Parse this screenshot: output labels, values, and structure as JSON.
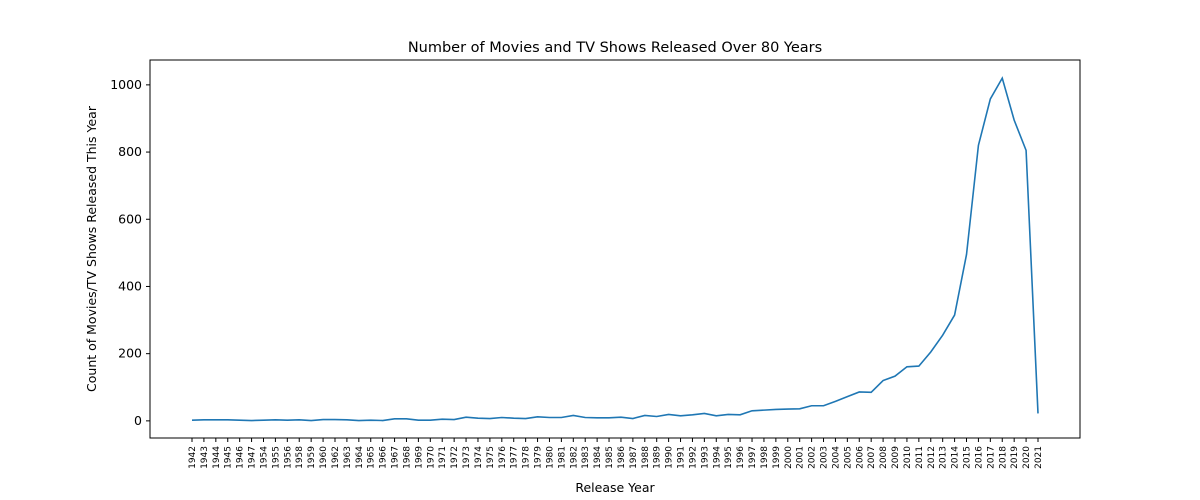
{
  "chart_data": {
    "type": "line",
    "title": "Number of Movies and TV Shows Released Over 80 Years",
    "x_label": "Release Year",
    "y_label": "Count of Movies/TV Shows Released This Year",
    "categories": [
      "1942",
      "1943",
      "1944",
      "1945",
      "1946",
      "1947",
      "1954",
      "1955",
      "1956",
      "1958",
      "1959",
      "1960",
      "1962",
      "1963",
      "1964",
      "1965",
      "1966",
      "1967",
      "1968",
      "1969",
      "1970",
      "1971",
      "1972",
      "1973",
      "1974",
      "1975",
      "1976",
      "1977",
      "1978",
      "1979",
      "1980",
      "1981",
      "1982",
      "1983",
      "1984",
      "1985",
      "1986",
      "1987",
      "1988",
      "1989",
      "1990",
      "1991",
      "1992",
      "1993",
      "1994",
      "1995",
      "1996",
      "1997",
      "1998",
      "1999",
      "2000",
      "2001",
      "2002",
      "2003",
      "2004",
      "2005",
      "2006",
      "2007",
      "2008",
      "2009",
      "2010",
      "2011",
      "2012",
      "2013",
      "2014",
      "2015",
      "2016",
      "2017",
      "2018",
      "2019",
      "2020",
      "2021"
    ],
    "series": [
      {
        "color": "#1f77b4",
        "values": [
          2,
          3,
          3,
          3,
          2,
          1,
          2,
          3,
          2,
          3,
          1,
          4,
          4,
          3,
          1,
          2,
          1,
          6,
          6,
          2,
          2,
          5,
          4,
          11,
          8,
          7,
          10,
          8,
          7,
          12,
          10,
          10,
          16,
          10,
          9,
          9,
          11,
          7,
          16,
          13,
          19,
          15,
          18,
          22,
          15,
          19,
          18,
          30,
          32,
          34,
          35,
          36,
          45,
          45,
          58,
          72,
          86,
          85,
          120,
          133,
          161,
          163,
          205,
          255,
          315,
          495,
          820,
          958,
          1020,
          895,
          805,
          22
        ]
      }
    ],
    "ylim": [
      -51,
      1074
    ],
    "yticks": [
      0,
      200,
      400,
      600,
      800,
      1000
    ],
    "grid": false
  }
}
